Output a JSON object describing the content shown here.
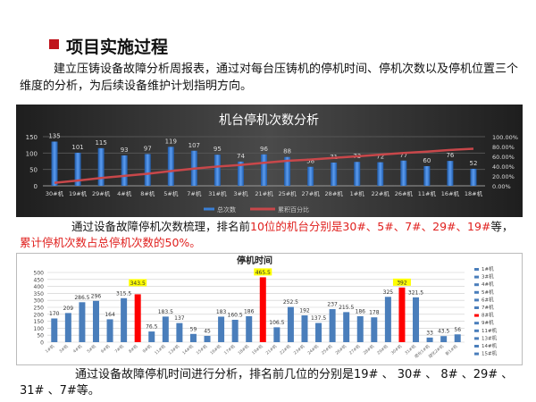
{
  "heading": "项目实施过程",
  "p1": "建立压铸设备故障分析周报表，通过对每台压铸机的停机时间、停机次数以及停机位置三个维度的分析，为后续设备维护计划指明方向。",
  "p2": {
    "a": "通过设备故障停机次数梳理，排名前",
    "b": "10位的机台分别是30#、5#、7#、29#、19#",
    "c": "等，",
    "d": "累计停机次数占总停机次数的50%。"
  },
  "p3": "通过设备故障停机时间进行分析，排名前几位的分别是19# 、 30# 、 8# 、29# 、31# 、7#等。",
  "chart_data": [
    {
      "type": "bar+line",
      "title": "机台停机次数分析",
      "background": "#2b2b2b",
      "categories": [
        "30#机",
        "19#机",
        "29#机",
        "4#机",
        "8#机",
        "5#机",
        "7#机",
        "31#机",
        "3#机",
        "21#机",
        "25#机",
        "27#机",
        "28#机",
        "1#机",
        "22#机",
        "26#机",
        "11#机",
        "16#机",
        "18#机"
      ],
      "series": [
        {
          "name": "总次数",
          "type": "bar",
          "color": "#3a7fd5",
          "values": [
            135,
            101,
            115,
            93,
            97,
            119,
            107,
            95,
            74,
            96,
            88,
            58,
            71,
            73,
            72,
            77,
            60,
            76,
            52
          ]
        },
        {
          "name": "累积百分比",
          "type": "line",
          "color": "#c8474a",
          "axis": "right",
          "values": [
            6.1,
            10.7,
            16.0,
            20.2,
            24.6,
            30.0,
            34.9,
            39.2,
            42.5,
            46.9,
            50.9,
            53.5,
            56.8,
            60.1,
            63.4,
            66.9,
            69.6,
            73.0,
            75.4
          ]
        }
      ],
      "ylim": [
        0,
        150
      ],
      "yticks": [
        0,
        50,
        100,
        150
      ],
      "y2lim": [
        0,
        100
      ],
      "y2ticks": [
        "0.00%",
        "20.00%",
        "40.00%",
        "60.00%",
        "80.00%",
        "100.00%"
      ],
      "legend": "bottom"
    },
    {
      "type": "bar",
      "title": "停机时间",
      "bar_color": "#4a7ebb",
      "highlight_color": "#ff0000",
      "label_highlight": "#ffff00",
      "categories": [
        "1#机",
        "3#机",
        "4#机",
        "5#机",
        "6#机",
        "7#机",
        "8#机",
        "9#机",
        "11#机",
        "13#机",
        "14#机",
        "15#机",
        "16#机",
        "17#机",
        "18#机",
        "19#机",
        "21#机",
        "22#机",
        "23#机",
        "24#机",
        "25#机",
        "26#机",
        "27#机",
        "28#机",
        "29#机",
        "30#机",
        "31#机",
        "熔化1#机",
        "熔化2#机",
        "新1#机"
      ],
      "values": [
        170,
        209,
        286.5,
        296,
        164,
        315.5,
        343.5,
        76.5,
        183.5,
        137,
        59,
        45,
        183,
        160.5,
        186,
        465.5,
        106.5,
        252.5,
        192,
        137.5,
        237,
        215.5,
        186,
        178,
        325,
        392,
        321.5,
        33,
        43.5,
        56
      ],
      "highlighted": [
        "8#机",
        "19#机",
        "30#机"
      ],
      "ylim": [
        0,
        500
      ],
      "yticks": [
        0,
        50,
        100,
        150,
        200,
        250,
        300,
        350,
        400,
        450,
        500
      ],
      "legend_entries": [
        "1#机",
        "3#机",
        "4#机",
        "5#机",
        "6#机",
        "7#机",
        "8#机",
        "9#机",
        "11#机",
        "13#机",
        "14#机",
        "15#机"
      ],
      "legend": "right"
    }
  ]
}
